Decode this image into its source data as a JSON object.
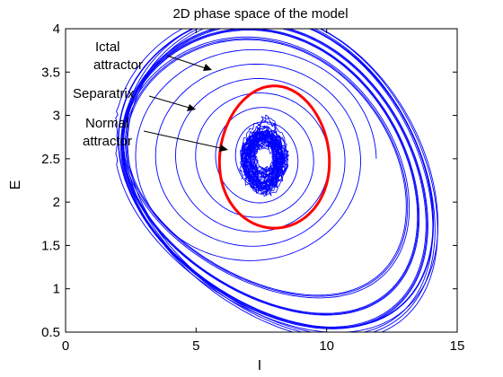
{
  "chart_data": {
    "type": "line",
    "title": "2D phase space of the model",
    "xlabel": "I",
    "ylabel": "E",
    "xlim": [
      0,
      15
    ],
    "ylim": [
      0.5,
      4
    ],
    "xticks": [
      "0",
      "5",
      "10",
      "15"
    ],
    "yticks": [
      "0.5",
      "1",
      "1.5",
      "2",
      "2.5",
      "3",
      "3.5",
      "4"
    ],
    "grid": false,
    "annotations": [
      {
        "id": "ictal",
        "lines": [
          "Ictal",
          "attractor"
        ]
      },
      {
        "id": "separatrix",
        "lines": [
          "Separatrix"
        ]
      },
      {
        "id": "normal",
        "lines": [
          "Normal",
          "attractor"
        ]
      }
    ],
    "series": [
      {
        "kind": "trajectory",
        "color": "#0000ff",
        "role": "ictal-attractor-loops",
        "loops": [
          {
            "cx": 7.8,
            "cy": 2.35,
            "rx": 5.4,
            "ry": 1.4,
            "tilt": 0.0
          },
          {
            "cx": 7.9,
            "cy": 2.3,
            "rx": 5.6,
            "ry": 1.5,
            "tilt": 0.02
          },
          {
            "cx": 8.0,
            "cy": 2.35,
            "rx": 5.8,
            "ry": 1.55,
            "tilt": 0.0
          },
          {
            "cx": 7.7,
            "cy": 2.4,
            "rx": 5.3,
            "ry": 1.3,
            "tilt": -0.02
          },
          {
            "cx": 8.1,
            "cy": 2.3,
            "rx": 5.7,
            "ry": 1.6,
            "tilt": 0.03
          }
        ]
      },
      {
        "kind": "trajectory",
        "color": "#0000ff",
        "role": "normal-attractor-cluster",
        "center": [
          7.6,
          2.5
        ],
        "radius": [
          0.8,
          0.35
        ]
      },
      {
        "kind": "closed-curve",
        "color": "#ff0000",
        "role": "separatrix",
        "center": [
          8.0,
          2.52
        ],
        "radius": [
          2.1,
          0.82
        ]
      }
    ]
  }
}
